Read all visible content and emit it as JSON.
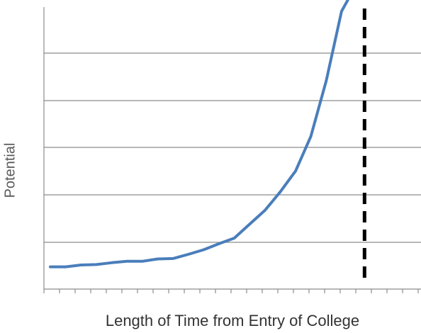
{
  "chart_data": {
    "type": "line",
    "title": "",
    "xlabel": "Length of Time from Entry of College",
    "ylabel": "Potential",
    "xlim": [
      0,
      24
    ],
    "ylim": [
      0,
      6
    ],
    "grid": true,
    "tick_labels_shown": false,
    "series": [
      {
        "color": "#4a7ebb",
        "x": [
          0,
          1,
          2,
          3,
          4,
          5,
          6,
          7,
          8,
          9,
          10,
          11,
          12,
          13,
          14,
          15,
          16,
          17,
          18,
          19,
          19.5
        ],
        "y": [
          0.48,
          0.48,
          0.52,
          0.53,
          0.57,
          0.6,
          0.6,
          0.65,
          0.66,
          0.75,
          0.85,
          0.98,
          1.1,
          1.4,
          1.7,
          2.1,
          2.55,
          3.3,
          4.5,
          6.0,
          6.3
        ]
      }
    ],
    "vertical_line": {
      "x": 20.5,
      "color": "#000000",
      "style": "dashed"
    }
  }
}
